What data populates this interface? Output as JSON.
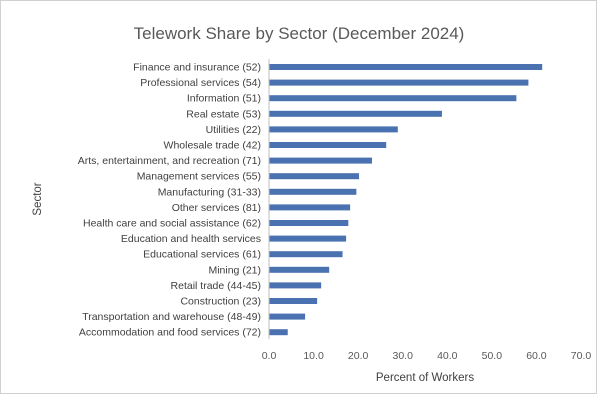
{
  "chart_data": {
    "type": "bar",
    "orientation": "horizontal",
    "title": "Telework Share by Sector (December 2024)",
    "xlabel": "Percent of Workers",
    "ylabel": "Sector",
    "xlim": [
      0,
      70
    ],
    "xticks": [
      "0.0",
      "10.0",
      "20.0",
      "30.0",
      "40.0",
      "50.0",
      "60.0",
      "70.0"
    ],
    "grid": false,
    "legend": "none",
    "color": "#4a72b0",
    "categories": [
      "Finance and insurance (52)",
      "Professional services (54)",
      "Information (51)",
      "Real estate (53)",
      "Utilities (22)",
      "Wholesale trade (42)",
      "Arts, entertainment, and recreation (71)",
      "Management services (55)",
      "Manufacturing (31-33)",
      "Other services (81)",
      "Health care and social assistance (62)",
      "Education and health services",
      "Educational services (61)",
      "Mining  (21)",
      "Retail trade (44-45)",
      "Construction (23)",
      "Transportation and warehouse (48-49)",
      "Accommodation and food services (72)"
    ],
    "values": [
      61.3,
      58.2,
      55.5,
      38.8,
      28.9,
      26.3,
      23.1,
      20.2,
      19.6,
      18.2,
      17.8,
      17.3,
      16.5,
      13.5,
      11.7,
      10.8,
      8.1,
      4.2
    ]
  }
}
